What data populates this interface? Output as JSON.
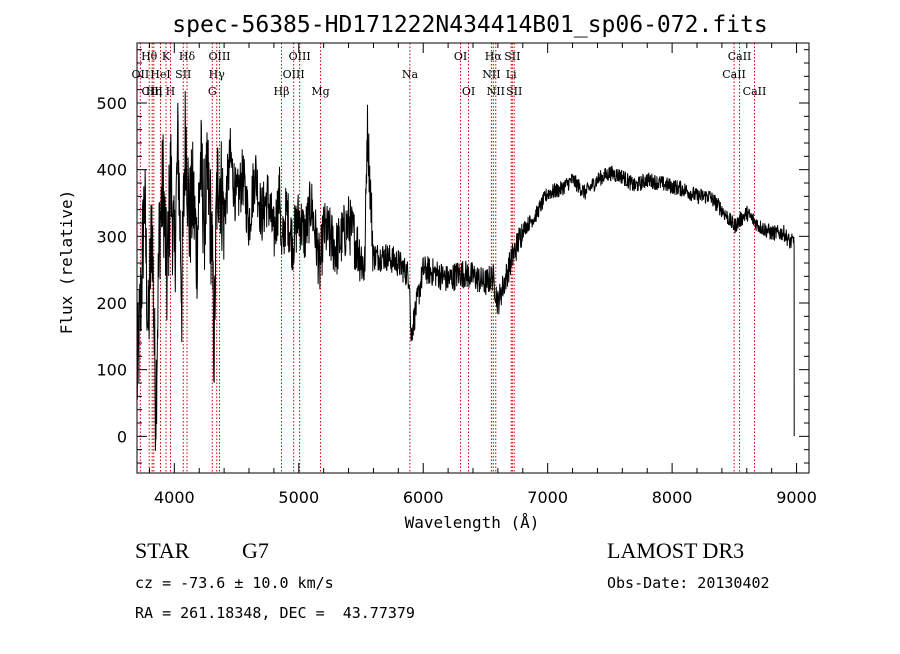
{
  "chart_data": {
    "type": "line",
    "title": "spec-56385-HD171222N434414B01_sp06-072.fits",
    "xlabel": "Wavelength (Å)",
    "ylabel": "Flux (relative)",
    "xlim": [
      3700,
      9100
    ],
    "ylim": [
      -55,
      590
    ],
    "xticks": [
      4000,
      5000,
      6000,
      7000,
      8000,
      9000
    ],
    "yticks": [
      0,
      100,
      200,
      300,
      400,
      500
    ],
    "series": [
      {
        "name": "spectrum",
        "x": [
          3700,
          3730,
          3760,
          3790,
          3820,
          3850,
          3880,
          3910,
          3940,
          3970,
          4000,
          4030,
          4060,
          4090,
          4120,
          4150,
          4180,
          4210,
          4240,
          4270,
          4300,
          4320,
          4340,
          4360,
          4400,
          4450,
          4500,
          4550,
          4600,
          4650,
          4700,
          4750,
          4800,
          4850,
          4860,
          4900,
          4950,
          5000,
          5050,
          5100,
          5150,
          5170,
          5200,
          5250,
          5300,
          5400,
          5500,
          5530,
          5550,
          5600,
          5700,
          5800,
          5890,
          5900,
          6000,
          6100,
          6200,
          6300,
          6400,
          6500,
          6560,
          6600,
          6700,
          6800,
          6900,
          7000,
          7100,
          7200,
          7300,
          7400,
          7500,
          7600,
          7700,
          7800,
          7900,
          8000,
          8100,
          8200,
          8300,
          8400,
          8500,
          8600,
          8700,
          8800,
          8900,
          8950,
          8980
        ],
        "y": [
          80,
          200,
          360,
          150,
          330,
          40,
          310,
          380,
          230,
          400,
          260,
          440,
          210,
          470,
          320,
          360,
          280,
          410,
          330,
          380,
          300,
          130,
          360,
          400,
          330,
          420,
          350,
          390,
          320,
          400,
          330,
          360,
          300,
          370,
          270,
          340,
          290,
          330,
          300,
          350,
          280,
          250,
          310,
          300,
          280,
          320,
          270,
          250,
          470,
          270,
          270,
          260,
          240,
          150,
          250,
          245,
          235,
          245,
          240,
          230,
          240,
          200,
          260,
          310,
          330,
          365,
          370,
          385,
          365,
          385,
          395,
          390,
          375,
          385,
          380,
          375,
          370,
          360,
          360,
          340,
          315,
          335,
          315,
          305,
          305,
          290,
          295
        ]
      }
    ],
    "emission_lines": [
      {
        "label": "OII",
        "wavelength": 3727,
        "row": 1
      },
      {
        "label": "Hθ",
        "wavelength": 3798,
        "row": 0
      },
      {
        "label": "CIII",
        "wavelength": 3822,
        "row": 2
      },
      {
        "label": "Hη",
        "wavelength": 3835,
        "row": 2
      },
      {
        "label": "HeI",
        "wavelength": 3889,
        "row": 1
      },
      {
        "label": "K",
        "wavelength": 3933,
        "row": 0
      },
      {
        "label": "H",
        "wavelength": 3969,
        "row": 2
      },
      {
        "label": "SII",
        "wavelength": 4072,
        "row": 1
      },
      {
        "label": "Hδ",
        "wavelength": 4102,
        "row": 0
      },
      {
        "label": "G",
        "wavelength": 4305,
        "row": 2
      },
      {
        "label": "Hγ",
        "wavelength": 4341,
        "row": 1
      },
      {
        "label": "OIII",
        "wavelength": 4363,
        "row": 0
      },
      {
        "label": "Hβ",
        "wavelength": 4861,
        "row": 2
      },
      {
        "label": "OIII",
        "wavelength": 4959,
        "row": 1
      },
      {
        "label": "OIII",
        "wavelength": 5007,
        "row": 0
      },
      {
        "label": "Mg",
        "wavelength": 5175,
        "row": 2
      },
      {
        "label": "Na",
        "wavelength": 5893,
        "row": 1
      },
      {
        "label": "OI",
        "wavelength": 6300,
        "row": 0
      },
      {
        "label": "OI",
        "wavelength": 6364,
        "row": 2
      },
      {
        "label": "NII",
        "wavelength": 6548,
        "row": 1
      },
      {
        "label": "Hα",
        "wavelength": 6563,
        "row": 0
      },
      {
        "label": "NII",
        "wavelength": 6583,
        "row": 2
      },
      {
        "label": "Li",
        "wavelength": 6707,
        "row": 1
      },
      {
        "label": "SII",
        "wavelength": 6716,
        "row": 0
      },
      {
        "label": "SII",
        "wavelength": 6731,
        "row": 2
      },
      {
        "label": "CaII",
        "wavelength": 8498,
        "row": 1
      },
      {
        "label": "CaII",
        "wavelength": 8542,
        "row": 0
      },
      {
        "label": "CaII",
        "wavelength": 8662,
        "row": 2
      }
    ]
  },
  "info": {
    "class": "STAR",
    "subclass": "G7",
    "survey": "LAMOST DR3",
    "cz": "cz = -73.6 ± 10.0 km/s",
    "obs_date": "Obs-Date: 20130402",
    "coords": "RA = 261.18348, DEC =  43.77379"
  },
  "colors": {
    "spectrum": "#000000",
    "line_marker": "#cc0000",
    "frame": "#000000"
  }
}
